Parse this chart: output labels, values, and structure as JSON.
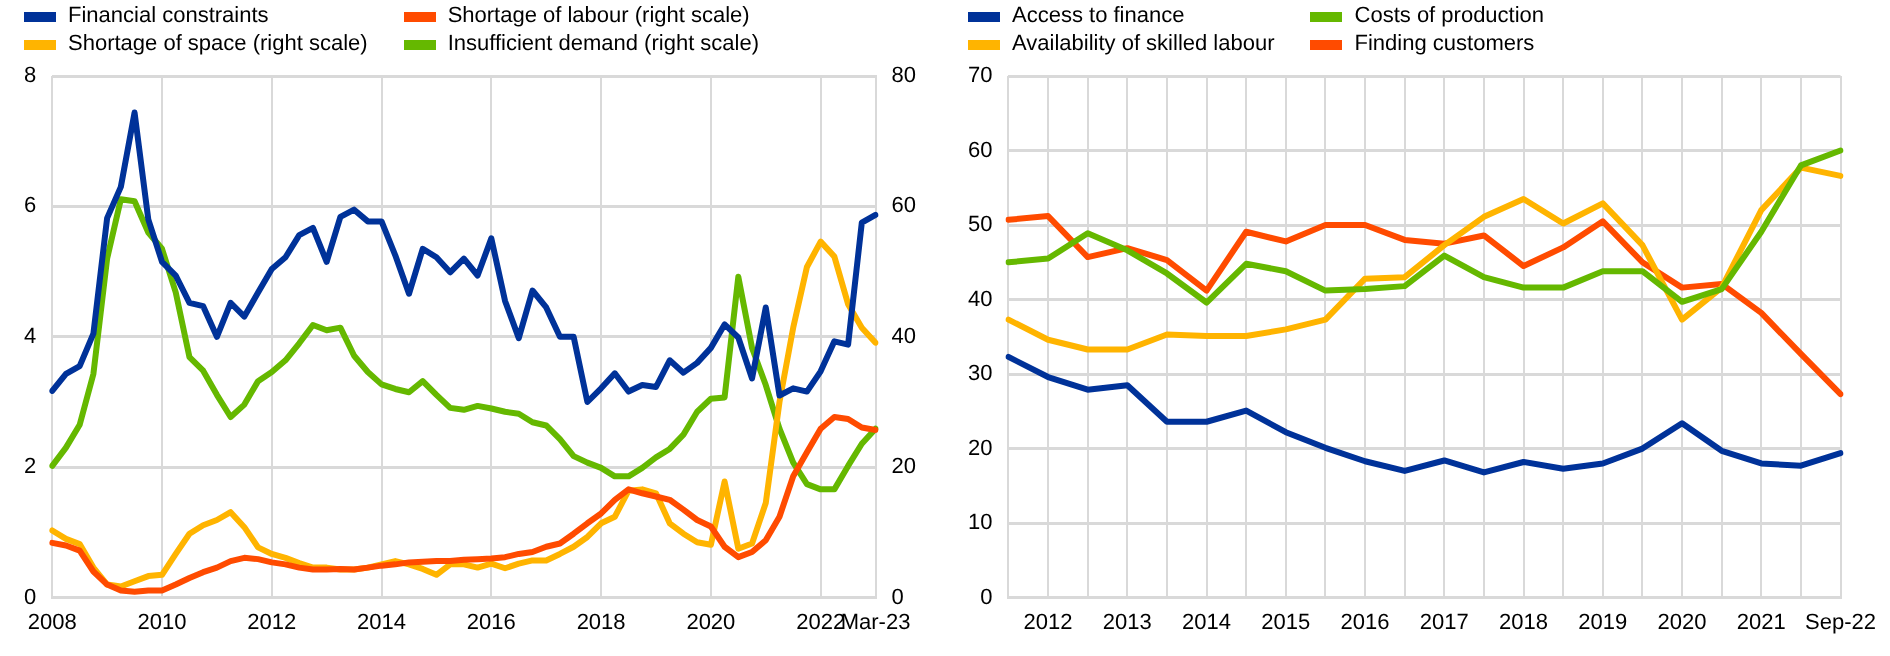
{
  "chart_data": [
    {
      "type": "line",
      "legend": "top left",
      "grid": true,
      "marker": "none",
      "categories": [
        "2008",
        null,
        null,
        null,
        null,
        null,
        null,
        null,
        "2010",
        null,
        null,
        null,
        null,
        null,
        null,
        null,
        "2012",
        null,
        null,
        null,
        null,
        null,
        null,
        null,
        "2014",
        null,
        null,
        null,
        null,
        null,
        null,
        null,
        "2016",
        null,
        null,
        null,
        null,
        null,
        null,
        null,
        "2018",
        null,
        null,
        null,
        null,
        null,
        null,
        null,
        "2020",
        null,
        null,
        null,
        null,
        null,
        null,
        null,
        "2022",
        null,
        null,
        null,
        "Mar-23"
      ],
      "ylim": [
        0,
        8
      ],
      "yticks": [
        0,
        2,
        4,
        6,
        8
      ],
      "y2lim": [
        0,
        80
      ],
      "y2ticks": [
        0,
        20,
        40,
        60,
        80
      ],
      "series": [
        {
          "name": "Financial constraints",
          "color": "#003299",
          "values": [
            3.17,
            3.43,
            3.55,
            4.05,
            5.82,
            6.3,
            7.44,
            5.8,
            5.15,
            4.94,
            4.52,
            4.47,
            4.0,
            4.52,
            4.31,
            4.68,
            5.04,
            5.22,
            5.56,
            5.67,
            5.15,
            5.84,
            5.95,
            5.77,
            5.77,
            5.25,
            4.66,
            5.35,
            5.22,
            4.99,
            5.2,
            4.94,
            5.51,
            4.55,
            3.98,
            4.71,
            4.45,
            4.0,
            4.0,
            3.0,
            3.21,
            3.44,
            3.16,
            3.26,
            3.23,
            3.64,
            3.45,
            3.6,
            3.83,
            4.19,
            3.99,
            3.36,
            4.45,
            3.1,
            3.21,
            3.16,
            3.47,
            3.93,
            3.88,
            5.75,
            5.87
          ]
        },
        {
          "name": "Shortage of labour (right scale)",
          "color": "#ff4b00",
          "axis": "y2",
          "values": [
            8.4,
            8.0,
            7.2,
            4.0,
            2.0,
            1.1,
            0.9,
            1.1,
            1.1,
            2.0,
            3.0,
            3.9,
            4.6,
            5.6,
            6.1,
            5.9,
            5.4,
            5.1,
            4.6,
            4.3,
            4.3,
            4.4,
            4.3,
            4.6,
            4.9,
            5.1,
            5.4,
            5.5,
            5.6,
            5.6,
            5.8,
            5.9,
            6.0,
            6.2,
            6.7,
            7.0,
            7.8,
            8.3,
            9.8,
            11.4,
            12.9,
            15.0,
            16.6,
            16.0,
            15.5,
            15.0,
            13.5,
            11.9,
            10.9,
            7.8,
            6.2,
            7.0,
            8.8,
            12.4,
            18.6,
            22.3,
            25.9,
            27.7,
            27.4,
            26.1,
            25.7
          ]
        },
        {
          "name": "Shortage of space (right scale)",
          "color": "#ffb400",
          "axis": "y2",
          "values": [
            10.3,
            9.0,
            8.2,
            4.6,
            2.0,
            1.7,
            2.5,
            3.3,
            3.5,
            6.7,
            9.8,
            11.1,
            11.9,
            13.1,
            10.8,
            7.7,
            6.7,
            6.1,
            5.3,
            4.6,
            4.6,
            4.3,
            4.3,
            4.6,
            5.1,
            5.6,
            5.1,
            4.4,
            3.5,
            5.1,
            5.1,
            4.6,
            5.2,
            4.5,
            5.2,
            5.7,
            5.7,
            6.7,
            7.8,
            9.3,
            11.4,
            12.4,
            16.4,
            16.6,
            16.0,
            11.4,
            9.8,
            8.5,
            8.1,
            17.8,
            7.5,
            8.3,
            14.5,
            30.0,
            41.4,
            50.7,
            54.6,
            52.3,
            45.0,
            41.4,
            39.1
          ]
        },
        {
          "name": "Insufficient demand (right scale)",
          "color": "#65b800",
          "axis": "y2",
          "values": [
            20.2,
            23.0,
            26.5,
            34.3,
            52.0,
            61.1,
            60.8,
            56.0,
            53.5,
            46.8,
            36.9,
            34.8,
            31.1,
            27.7,
            29.6,
            33.2,
            34.6,
            36.4,
            39.0,
            41.8,
            41.0,
            41.4,
            37.1,
            34.6,
            32.7,
            32.0,
            31.5,
            33.2,
            31.1,
            29.1,
            28.8,
            29.4,
            29.0,
            28.5,
            28.2,
            26.9,
            26.4,
            24.3,
            21.7,
            20.7,
            19.9,
            18.6,
            18.6,
            19.9,
            21.5,
            22.8,
            25.0,
            28.5,
            30.5,
            30.7,
            49.2,
            38.3,
            32.6,
            25.9,
            20.7,
            17.4,
            16.6,
            16.6,
            20.2,
            23.6,
            25.9
          ]
        }
      ]
    },
    {
      "type": "line",
      "legend": "top left",
      "grid": true,
      "marker": "none",
      "categories": [
        null,
        "2012",
        null,
        "2013",
        null,
        "2014",
        null,
        "2015",
        null,
        "2016",
        null,
        "2017",
        null,
        "2018",
        null,
        "2019",
        null,
        "2020",
        null,
        "2021",
        null,
        "Sep-22"
      ],
      "ylim": [
        0,
        70
      ],
      "yticks": [
        0,
        10,
        20,
        30,
        40,
        50,
        60,
        70
      ],
      "series": [
        {
          "name": "Access to finance",
          "color": "#003299",
          "values": [
            32.3,
            29.6,
            27.9,
            28.5,
            23.6,
            23.6,
            25.1,
            22.2,
            20.1,
            18.3,
            17.0,
            18.4,
            16.8,
            18.2,
            17.3,
            18.0,
            20.0,
            23.4,
            19.7,
            18.0,
            17.7,
            19.4
          ]
        },
        {
          "name": "Costs of production",
          "color": "#65b800",
          "values": [
            45.0,
            45.5,
            48.9,
            46.6,
            43.5,
            39.6,
            44.8,
            43.8,
            41.2,
            41.4,
            41.8,
            45.9,
            43.0,
            41.6,
            41.6,
            43.8,
            43.8,
            39.7,
            41.4,
            49.1,
            58.0,
            60.0
          ]
        },
        {
          "name": "Availability of skilled labour",
          "color": "#ffb400",
          "values": [
            37.3,
            34.6,
            33.3,
            33.3,
            35.3,
            35.1,
            35.1,
            36.0,
            37.3,
            42.8,
            43.0,
            47.3,
            51.1,
            53.5,
            50.2,
            52.9,
            47.3,
            37.3,
            41.6,
            52.0,
            57.7,
            56.6
          ]
        },
        {
          "name": "Finding customers",
          "color": "#ff4b00",
          "values": [
            50.7,
            51.2,
            45.7,
            46.9,
            45.3,
            41.2,
            49.1,
            47.8,
            50.0,
            50.0,
            48.0,
            47.5,
            48.6,
            44.5,
            47.0,
            50.5,
            45.0,
            41.6,
            42.1,
            38.2,
            32.7,
            27.3
          ]
        }
      ]
    }
  ]
}
